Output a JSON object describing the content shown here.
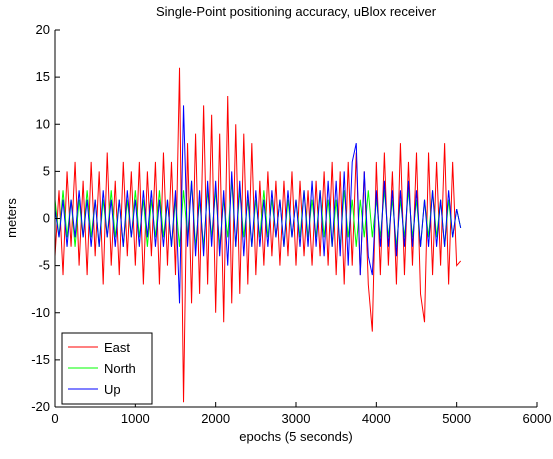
{
  "chart_data": {
    "type": "line",
    "title": "Single-Point positioning accuracy, uBlox receiver",
    "x_label": "epochs (5 seconds)",
    "y_label": "meters",
    "x": [
      0,
      50,
      100,
      150,
      200,
      250,
      300,
      350,
      400,
      450,
      500,
      550,
      600,
      650,
      700,
      750,
      800,
      850,
      900,
      950,
      1000,
      1050,
      1100,
      1150,
      1200,
      1250,
      1300,
      1350,
      1400,
      1450,
      1500,
      1550,
      1600,
      1650,
      1700,
      1750,
      1800,
      1850,
      1900,
      1950,
      2000,
      2050,
      2100,
      2150,
      2200,
      2250,
      2300,
      2350,
      2400,
      2450,
      2500,
      2550,
      2600,
      2650,
      2700,
      2750,
      2800,
      2850,
      2900,
      2950,
      3000,
      3050,
      3100,
      3150,
      3200,
      3250,
      3300,
      3350,
      3400,
      3450,
      3500,
      3550,
      3600,
      3650,
      3700,
      3750,
      3800,
      3850,
      3900,
      3950,
      4000,
      4050,
      4100,
      4150,
      4200,
      4250,
      4300,
      4350,
      4400,
      4450,
      4500,
      4550,
      4600,
      4650,
      4700,
      4750,
      4800,
      4850,
      4900,
      4950,
      5000,
      5050
    ],
    "series": [
      {
        "name": "East",
        "color": "#ff0000",
        "values": [
          -4,
          3,
          -6,
          5,
          -3,
          6,
          -5,
          4,
          -6,
          6,
          -4,
          5,
          -7,
          7,
          -5,
          4,
          -6,
          6,
          -4,
          5,
          -5,
          6,
          -7,
          5,
          -4,
          6,
          -7,
          7,
          -5,
          6,
          -6,
          16,
          -19.5,
          8,
          -9,
          9,
          -8,
          12,
          -7,
          11,
          -10,
          9,
          -11,
          13,
          -9,
          10,
          -8,
          9,
          -7,
          8,
          -6,
          4,
          -5,
          5,
          -4,
          4,
          -5,
          4,
          -4,
          5,
          -5,
          4,
          -4,
          3,
          -5,
          4,
          -4,
          5,
          -5,
          6,
          -6,
          5,
          -7,
          6,
          -5,
          7,
          -6,
          5,
          -7,
          -12,
          6,
          -6,
          7,
          -5,
          5,
          -7,
          8,
          -6,
          6,
          -5,
          7,
          -8,
          -11,
          7,
          -6,
          6,
          -5,
          8,
          -7,
          6,
          -5,
          -4.5
        ]
      },
      {
        "name": "North",
        "color": "#00ff00",
        "values": [
          2,
          -2,
          3,
          -2,
          2,
          -3,
          2,
          -2,
          3,
          -2,
          2,
          -3,
          2,
          -2,
          3,
          -2,
          2,
          -3,
          2,
          -2,
          3,
          -2,
          2,
          -3,
          2,
          -2,
          3,
          -2,
          2,
          -3,
          2,
          -3,
          3,
          -2,
          4,
          -3,
          2,
          -3,
          3,
          -2,
          3,
          -3,
          2,
          -2,
          4,
          -3,
          3,
          -2,
          2,
          -3,
          2,
          -2,
          3,
          -2,
          2,
          -2,
          2,
          -3,
          2,
          -2,
          2,
          -2,
          3,
          -2,
          2,
          -2,
          3,
          -2,
          2,
          -3,
          2,
          -3,
          3,
          -2,
          2,
          -3,
          2,
          -2,
          3,
          -2,
          2,
          -2,
          3,
          -2,
          2,
          -3,
          2,
          -2,
          3,
          -2,
          2,
          -3,
          2,
          -2,
          3,
          -2,
          2,
          -3,
          2,
          -2,
          1,
          -1
        ]
      },
      {
        "name": "Up",
        "color": "#0000ff",
        "values": [
          1,
          -2,
          2,
          -3,
          2,
          -2,
          3,
          -2,
          2,
          -3,
          2,
          -3,
          3,
          -2,
          2,
          -3,
          2,
          -3,
          3,
          -2,
          2,
          -3,
          3,
          -2,
          3,
          -3,
          2,
          -3,
          2,
          -3,
          3,
          -9,
          12,
          -3,
          4,
          -4,
          3,
          -4,
          4,
          -3,
          4,
          -4,
          3,
          -5,
          5,
          -3,
          4,
          -4,
          3,
          -3,
          3,
          -3,
          2,
          -3,
          3,
          -2,
          2,
          -3,
          3,
          -2,
          2,
          -3,
          3,
          -3,
          4,
          -3,
          3,
          -4,
          4,
          -3,
          4,
          -4,
          5,
          -5,
          6,
          8,
          -6,
          5,
          -4,
          -6,
          3,
          -3,
          4,
          -3,
          3,
          -4,
          3,
          -3,
          4,
          -3,
          3,
          -3,
          2,
          -3,
          3,
          -3,
          2,
          -3,
          3,
          -2,
          1,
          -1
        ]
      }
    ],
    "xlim": [
      0,
      6000
    ],
    "xticks": [
      0,
      1000,
      2000,
      3000,
      4000,
      5000,
      6000
    ],
    "ylim": [
      -20,
      20
    ],
    "yticks": [
      -20,
      -15,
      -10,
      -5,
      0,
      5,
      10,
      15,
      20
    ],
    "legend": "lower left"
  }
}
